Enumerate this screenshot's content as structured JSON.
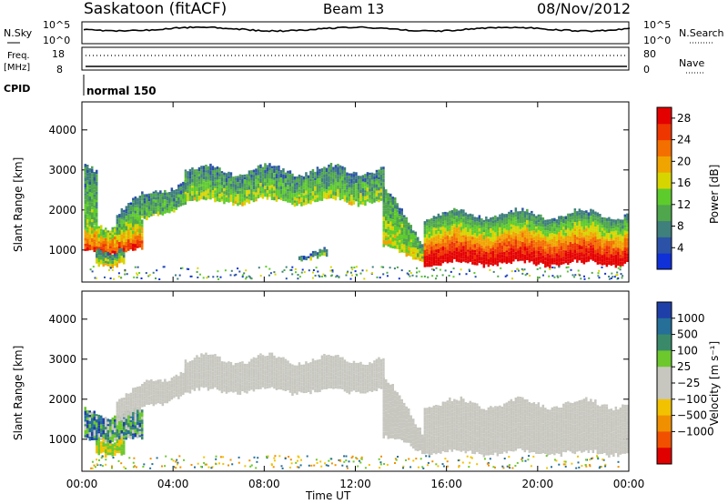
{
  "header": {
    "station": "Saskatoon (fitACF)",
    "beam": "Beam 13",
    "date": "08/Nov/2012"
  },
  "noise_panel": {
    "left_label": "N.Sky",
    "right_label": "N.Search",
    "left_ticks": [
      "10^5",
      "10^0"
    ],
    "right_ticks": [
      "10^5",
      "10^0"
    ]
  },
  "freq_panel": {
    "left_label_line1": "Freq.",
    "left_label_line2": "[MHz]",
    "right_label": "Nave",
    "left_ticks": [
      "18",
      "8"
    ],
    "right_ticks": [
      "80",
      "0"
    ]
  },
  "cpid": {
    "label": "CPID",
    "mode": "normal 150"
  },
  "colors": {
    "power_scale": [
      "#1030d8",
      "#2c52a8",
      "#3f7f7c",
      "#4fa64c",
      "#5ecb2c",
      "#d7d500",
      "#f0a400",
      "#f36f00",
      "#ee3600",
      "#e50000"
    ],
    "velocity_scale": [
      "#1f3fa8",
      "#256f98",
      "#3a8a6a",
      "#6cc82c",
      "#c7c7c0",
      "#c7c7c0",
      "#f2c200",
      "#f09000",
      "#f05000",
      "#e00000"
    ],
    "ground_gray": "#c7c7c0"
  },
  "chart_data": [
    {
      "type": "heatmap",
      "name": "power",
      "title": "",
      "xlabel": "Time UT",
      "ylabel": "Slant Range [km]",
      "xlim": [
        0,
        24
      ],
      "ylim": [
        200,
        4700
      ],
      "x_ticks": [
        "00:00",
        "04:00",
        "08:00",
        "12:00",
        "16:00",
        "20:00",
        "00:00"
      ],
      "y_ticks": [
        1000,
        2000,
        3000,
        4000
      ],
      "colorbar": {
        "label": "Power [dB]",
        "ticks": [
          4,
          8,
          12,
          16,
          20,
          24,
          28
        ],
        "range": [
          0,
          30
        ]
      },
      "echo_bands": [
        {
          "t_start": 0.1,
          "t_end": 2.6,
          "r_low": 1000,
          "r_high": 1650,
          "level": 0.7
        },
        {
          "t_start": 0.1,
          "t_end": 0.6,
          "r_low": 1650,
          "r_high": 3000,
          "level": 0.35
        },
        {
          "t_start": 0.6,
          "t_end": 1.8,
          "r_low": 700,
          "r_high": 1050,
          "level": 0.45
        },
        {
          "t_start": 1.5,
          "t_end": 4.5,
          "r_low": 1600,
          "r_high": 2600,
          "level": 0.35
        },
        {
          "t_start": 4.5,
          "t_end": 13.2,
          "r_low": 2250,
          "r_high": 3000,
          "level": 0.4
        },
        {
          "t_start": 13.2,
          "t_end": 15.0,
          "r_low": 1100,
          "r_high": 2500,
          "level": 0.45
        },
        {
          "t_start": 15.0,
          "t_end": 23.9,
          "r_low": 700,
          "r_high": 1900,
          "level": 0.75
        },
        {
          "t_start": 9.5,
          "t_end": 10.7,
          "r_low": 850,
          "r_high": 950,
          "level": 0.35
        }
      ]
    },
    {
      "type": "heatmap",
      "name": "velocity",
      "title": "",
      "xlabel": "Time UT",
      "ylabel": "Slant Range [km]",
      "xlim": [
        0,
        24
      ],
      "ylim": [
        200,
        4700
      ],
      "x_ticks": [
        "00:00",
        "04:00",
        "08:00",
        "12:00",
        "16:00",
        "20:00",
        "00:00"
      ],
      "y_ticks": [
        1000,
        2000,
        3000,
        4000
      ],
      "colorbar": {
        "label": "Velocity [m s⁻¹]",
        "ticks": [
          "1000",
          "500",
          "100",
          "25",
          "−25",
          "−100",
          "−500",
          "−1000"
        ]
      },
      "echo_bands": [
        {
          "t_start": 0.1,
          "t_end": 2.6,
          "r_low": 1000,
          "r_high": 1650,
          "level": "mixed"
        },
        {
          "t_start": 0.6,
          "t_end": 1.8,
          "r_low": 700,
          "r_high": 1050,
          "level": "green"
        },
        {
          "t_start": 1.5,
          "t_end": 4.5,
          "r_low": 1600,
          "r_high": 2600,
          "level": "gray"
        },
        {
          "t_start": 4.5,
          "t_end": 13.2,
          "r_low": 2250,
          "r_high": 3000,
          "level": "gray"
        },
        {
          "t_start": 13.2,
          "t_end": 15.0,
          "r_low": 1100,
          "r_high": 2500,
          "level": "gray"
        },
        {
          "t_start": 15.0,
          "t_end": 23.9,
          "r_low": 700,
          "r_high": 1900,
          "level": "gray"
        }
      ]
    }
  ]
}
